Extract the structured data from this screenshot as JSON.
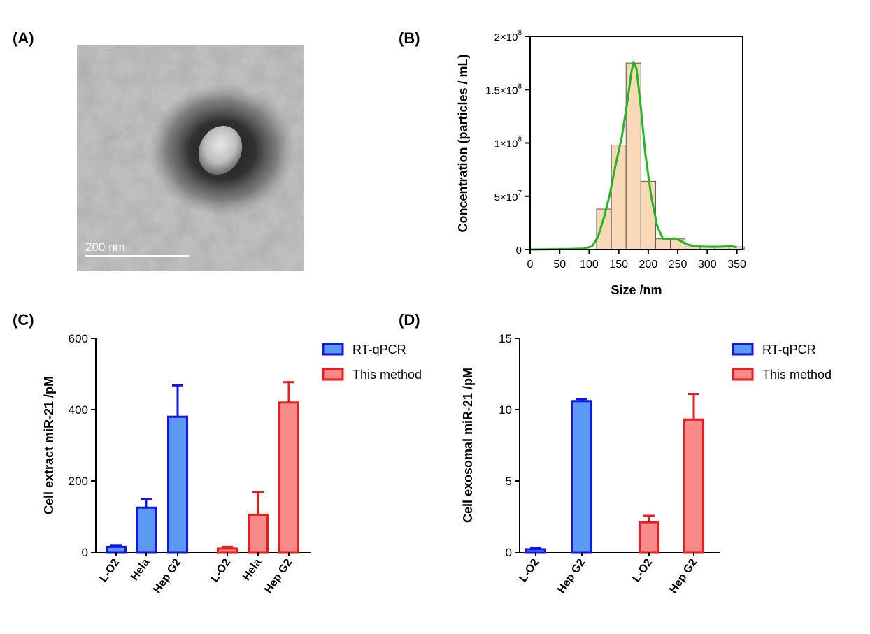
{
  "panel_labels": [
    "(A)",
    "(B)",
    "(C)",
    "(D)"
  ],
  "tem": {
    "scale_bar_label": "200 nm"
  },
  "chart_data": [
    {
      "panel": "(B)",
      "type": "bar",
      "xlabel": "Size /nm",
      "ylabel": "Concentration (particles / mL)",
      "xlim": [
        0,
        360
      ],
      "ylim": [
        0,
        200000000
      ],
      "x_ticks": [
        0,
        50,
        100,
        150,
        200,
        250,
        300,
        350
      ],
      "y_ticks": [
        {
          "value": 0,
          "label": "0"
        },
        {
          "value": 50000000,
          "label": "5×10",
          "exp": "7"
        },
        {
          "value": 100000000,
          "label": "1×10",
          "exp": "8"
        },
        {
          "value": 150000000,
          "label": "1.5×10",
          "exp": "8"
        },
        {
          "value": 200000000,
          "label": "2×10",
          "exp": "8"
        }
      ],
      "histogram": {
        "bin_width": 25,
        "bins": [
          {
            "start": 112.5,
            "value": 38000000
          },
          {
            "start": 137.5,
            "value": 98000000
          },
          {
            "start": 162.5,
            "value": 175000000
          },
          {
            "start": 187.5,
            "value": 64000000
          },
          {
            "start": 212.5,
            "value": 10000000
          },
          {
            "start": 237.5,
            "value": 10000000
          },
          {
            "start": 262.5,
            "value": 2500000
          },
          {
            "start": 287.5,
            "value": 2500000
          },
          {
            "start": 312.5,
            "value": 2500000
          },
          {
            "start": 337.5,
            "value": 2500000
          }
        ],
        "fill": "#f9d9b8",
        "stroke": "#555555"
      },
      "curve": {
        "color": "#22b822",
        "points": [
          [
            0,
            0
          ],
          [
            50,
            300000
          ],
          [
            90,
            800000
          ],
          [
            105,
            3000000
          ],
          [
            115,
            12000000
          ],
          [
            125,
            30000000
          ],
          [
            135,
            52000000
          ],
          [
            145,
            80000000
          ],
          [
            155,
            105000000
          ],
          [
            165,
            140000000
          ],
          [
            172,
            168000000
          ],
          [
            175,
            176000000
          ],
          [
            180,
            170000000
          ],
          [
            188,
            130000000
          ],
          [
            195,
            90000000
          ],
          [
            205,
            50000000
          ],
          [
            215,
            22000000
          ],
          [
            225,
            10000000
          ],
          [
            235,
            9500000
          ],
          [
            245,
            10500000
          ],
          [
            255,
            8000000
          ],
          [
            265,
            5000000
          ],
          [
            280,
            3000000
          ],
          [
            300,
            2600000
          ],
          [
            320,
            2600000
          ],
          [
            340,
            3000000
          ],
          [
            350,
            2200000
          ]
        ]
      },
      "grid": false
    },
    {
      "panel": "(C)",
      "type": "bar",
      "ylabel": "Cell extract miR-21 /pM",
      "ylim": [
        0,
        600
      ],
      "y_ticks": [
        0,
        200,
        400,
        600
      ],
      "legend": {
        "position": "top-right",
        "entries": [
          "RT-qPCR",
          "This method"
        ]
      },
      "series": [
        {
          "name": "RT-qPCR",
          "fill": "#5a9af5",
          "stroke": "#1414e6",
          "categories": [
            "L-O2",
            "Hela",
            "Hep G2"
          ],
          "values": [
            15,
            125,
            380
          ],
          "errors": [
            5,
            25,
            88
          ]
        },
        {
          "name": "This method",
          "fill": "#f88a8a",
          "stroke": "#e81d1d",
          "categories": [
            "L-O2",
            "Hela",
            "Hep G2"
          ],
          "values": [
            10,
            105,
            420
          ],
          "errors": [
            5,
            63,
            57
          ]
        }
      ],
      "grid": false
    },
    {
      "panel": "(D)",
      "type": "bar",
      "ylabel": "Cell exosomal miR-21 /pM",
      "ylim": [
        0,
        15
      ],
      "y_ticks": [
        0,
        5,
        10,
        15
      ],
      "legend": {
        "position": "top-right",
        "entries": [
          "RT-qPCR",
          "This method"
        ]
      },
      "series": [
        {
          "name": "RT-qPCR",
          "fill": "#5a9af5",
          "stroke": "#1414e6",
          "categories": [
            "L-O2",
            "Hep G2"
          ],
          "values": [
            0.2,
            10.6
          ],
          "errors": [
            0.1,
            0.15
          ]
        },
        {
          "name": "This method",
          "fill": "#f88a8a",
          "stroke": "#e81d1d",
          "categories": [
            "L-O2",
            "Hep G2"
          ],
          "values": [
            2.1,
            9.3
          ],
          "errors": [
            0.45,
            1.8
          ]
        }
      ],
      "grid": false
    }
  ]
}
